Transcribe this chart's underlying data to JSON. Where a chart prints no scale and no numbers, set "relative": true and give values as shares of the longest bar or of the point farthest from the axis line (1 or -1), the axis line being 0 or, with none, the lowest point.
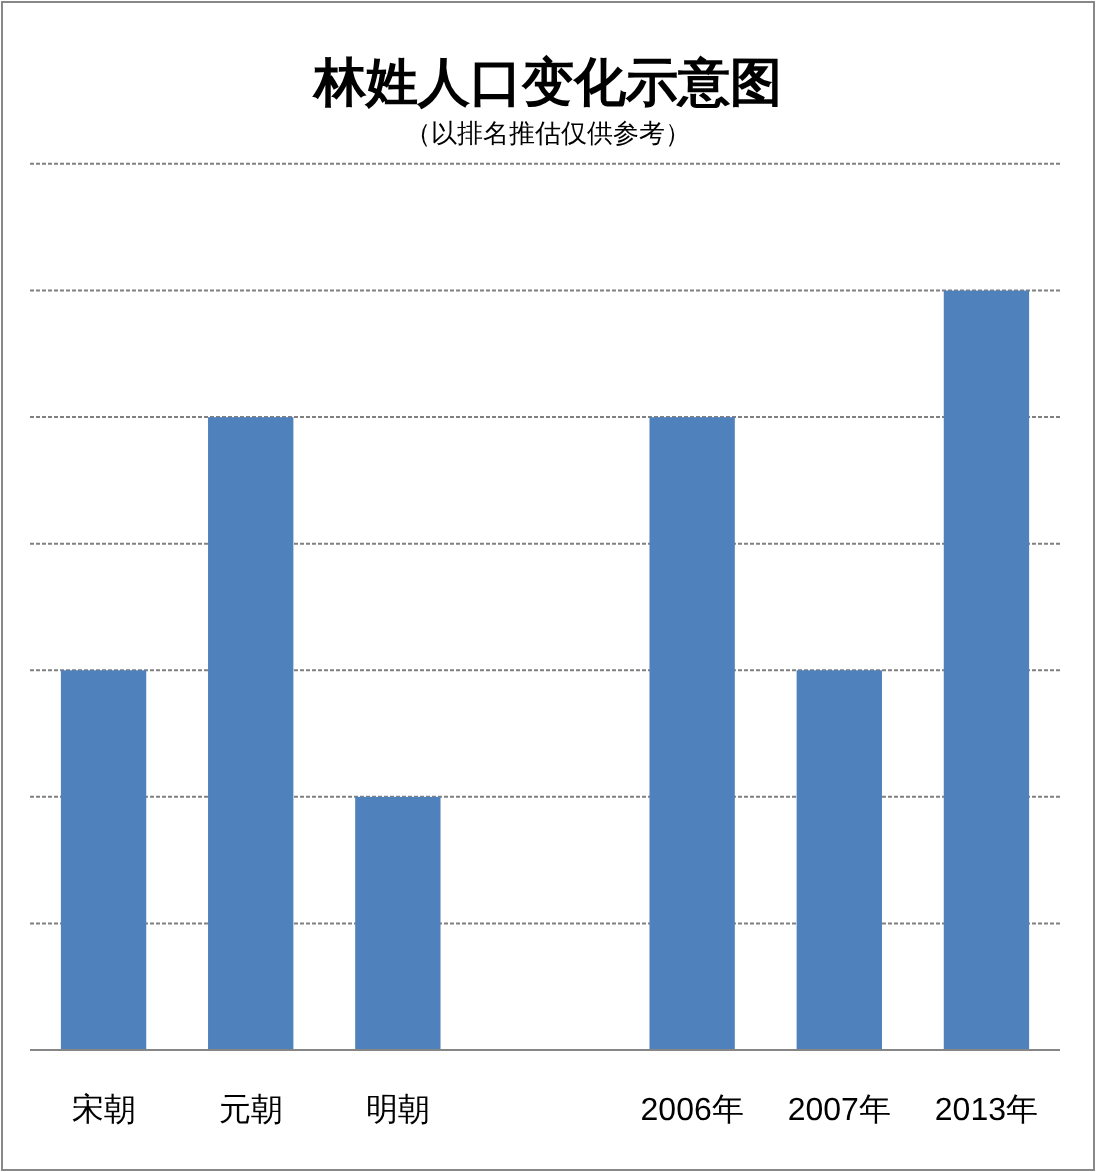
{
  "chart_data": {
    "type": "bar",
    "title": "林姓人口变化示意图",
    "subtitle": "（以排名推估仅供参考）",
    "categories": [
      "宋朝",
      "元朝",
      "明朝",
      null,
      "2006年",
      "2007年",
      "2013年"
    ],
    "values": [
      0.5,
      0.8333,
      0.3333,
      null,
      0.8333,
      0.5,
      1
    ],
    "color": "#4f81bd",
    "relative": true,
    "grid": "y"
  }
}
